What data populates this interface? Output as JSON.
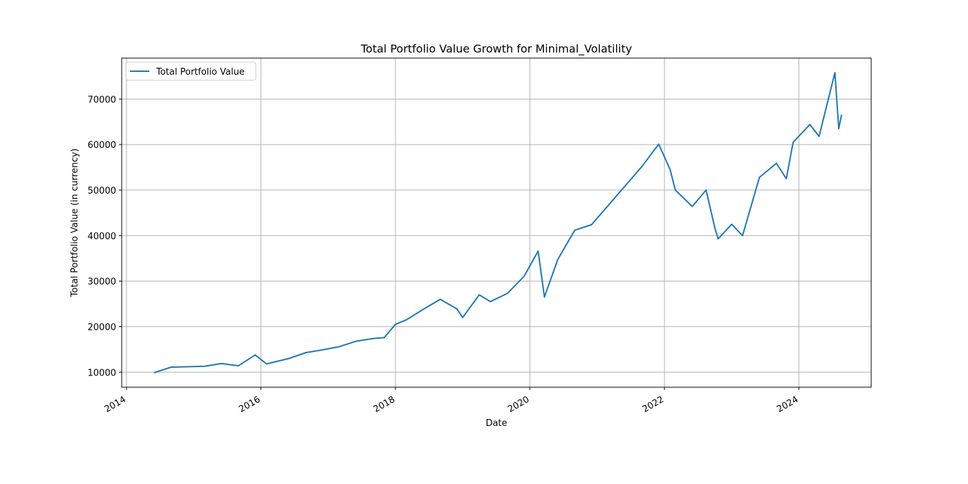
{
  "colors": {
    "series": "#1f77b4",
    "grid": "#b0b0b0",
    "axis": "#000000",
    "background": "#ffffff"
  },
  "chart_data": {
    "type": "line",
    "title": "Total Portfolio Value Growth for Minimal_Volatility",
    "xlabel": "Date",
    "ylabel": "Total Portfolio Value (in currency)",
    "xlim": [
      "2013-12-06",
      "2025-01-28"
    ],
    "ylim": [
      6700,
      79000
    ],
    "grid": true,
    "legend_position": "top-left",
    "x_ticks": [
      "2014",
      "2016",
      "2018",
      "2020",
      "2022",
      "2024"
    ],
    "y_ticks": [
      10000,
      20000,
      30000,
      40000,
      50000,
      60000,
      70000
    ],
    "series": [
      {
        "name": "Total Portfolio Value",
        "x": [
          "2014-06-01",
          "2014-09-01",
          "2014-12-01",
          "2015-03-01",
          "2015-06-01",
          "2015-09-01",
          "2015-12-01",
          "2016-02-01",
          "2016-06-01",
          "2016-09-01",
          "2016-12-01",
          "2017-03-01",
          "2017-06-01",
          "2017-09-01",
          "2017-11-01",
          "2018-01-01",
          "2018-03-01",
          "2018-06-01",
          "2018-09-01",
          "2018-12-01",
          "2019-01-01",
          "2019-04-01",
          "2019-06-01",
          "2019-09-01",
          "2019-12-01",
          "2020-02-15",
          "2020-03-20",
          "2020-06-01",
          "2020-09-01",
          "2020-12-01",
          "2021-03-01",
          "2021-06-01",
          "2021-09-01",
          "2021-12-01",
          "2022-02-01",
          "2022-03-01",
          "2022-06-01",
          "2022-08-15",
          "2022-10-01",
          "2022-10-20",
          "2023-01-01",
          "2023-03-01",
          "2023-06-01",
          "2023-09-01",
          "2023-10-25",
          "2023-12-01",
          "2024-03-01",
          "2024-04-20",
          "2024-07-15",
          "2024-08-05",
          "2024-08-20"
        ],
        "y": [
          9900,
          11100,
          11200,
          11300,
          11900,
          11400,
          13800,
          11800,
          13000,
          14300,
          14900,
          15600,
          16800,
          17400,
          17600,
          20500,
          21500,
          23800,
          26000,
          23900,
          22000,
          27000,
          25500,
          27300,
          31100,
          36600,
          26500,
          34800,
          41200,
          42400,
          46600,
          50900,
          55200,
          60100,
          54500,
          50000,
          46400,
          50000,
          41800,
          39300,
          42500,
          40000,
          52800,
          55900,
          52500,
          60500,
          64400,
          61800,
          75800,
          63500,
          66500
        ]
      }
    ]
  }
}
